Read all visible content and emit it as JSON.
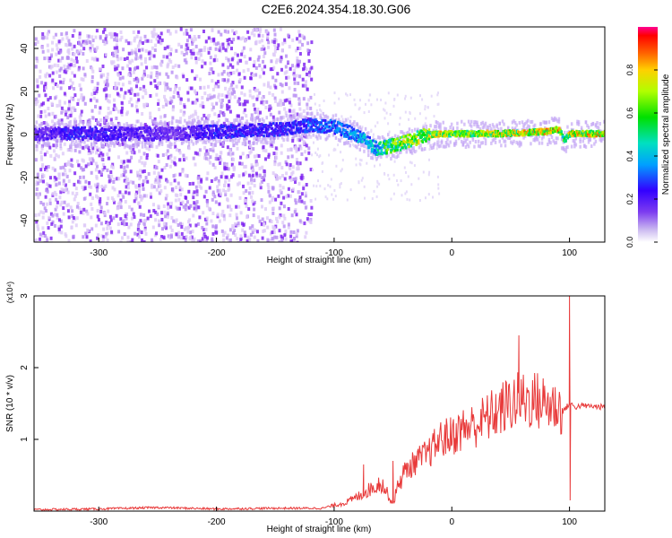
{
  "title": "C2E6.2024.354.18.30.G06",
  "chart_data": [
    {
      "type": "heatmap",
      "xlabel": "Height of straight line (km)",
      "ylabel": "Frequency (Hz)",
      "xlim": [
        -355,
        130
      ],
      "ylim": [
        -50,
        50
      ],
      "x_ticks": [
        "-300",
        "-200",
        "-100",
        "0",
        "100"
      ],
      "y_ticks": [
        "-40",
        "-20",
        "0",
        "20",
        "40"
      ],
      "colorbar": {
        "label": "Normalized spectral amplitude",
        "range": [
          0,
          1
        ],
        "ticks": [
          "0.0",
          "0.2",
          "0.4",
          "0.6",
          "0.8"
        ]
      },
      "ridge": {
        "x": [
          -355,
          -320,
          -280,
          -240,
          -200,
          -150,
          -120,
          -100,
          -80,
          -65,
          -55,
          -40,
          -25,
          -10,
          0,
          40,
          80,
          90,
          95,
          100,
          130
        ],
        "freq": [
          1,
          1,
          1,
          1,
          2,
          3,
          5,
          4,
          0,
          -6,
          -5,
          -3,
          0,
          1,
          1,
          1,
          2,
          3,
          -2,
          1,
          1
        ],
        "amplitude": [
          0.2,
          0.3,
          0.25,
          0.2,
          0.3,
          0.3,
          0.35,
          0.4,
          0.45,
          0.5,
          0.7,
          0.8,
          0.8,
          0.85,
          0.8,
          0.85,
          0.9,
          0.95,
          0.6,
          0.9,
          0.9
        ]
      }
    },
    {
      "type": "line",
      "xlabel": "Height of straight line (km)",
      "ylabel": "SNR (10 * v/v)",
      "y_scale_label": "(x10⁴)",
      "xlim": [
        -355,
        130
      ],
      "ylim": [
        0,
        3
      ],
      "x_ticks": [
        "-300",
        "-200",
        "-100",
        "0",
        "100"
      ],
      "y_ticks": [
        "1",
        "2",
        "3"
      ],
      "color": "#e83a3a",
      "series": [
        {
          "x": [
            -355,
            -300,
            -250,
            -200,
            -150,
            -110,
            -100,
            -90,
            -80,
            -70,
            -60,
            -50,
            -45,
            -40,
            -30,
            -20,
            -10,
            0,
            10,
            20,
            30,
            40,
            50,
            60,
            70,
            80,
            90,
            95,
            100,
            105,
            110,
            130
          ],
          "y": [
            0.02,
            0.03,
            0.05,
            0.03,
            0.04,
            0.04,
            0.08,
            0.12,
            0.2,
            0.3,
            0.4,
            0.1,
            0.4,
            0.55,
            0.7,
            0.8,
            1.0,
            1.05,
            1.15,
            1.2,
            1.3,
            1.4,
            1.5,
            1.55,
            1.55,
            1.5,
            1.45,
            1.4,
            1.5,
            1.45,
            1.47,
            1.45
          ]
        }
      ],
      "spikes": [
        {
          "x": 57,
          "y": 2.45
        },
        {
          "x": 100,
          "y": 3.0
        },
        {
          "x": 100.5,
          "y": 0.15
        },
        {
          "x": -50,
          "y": 0.7
        },
        {
          "x": -75,
          "y": 0.65
        }
      ]
    }
  ],
  "colors": {
    "red_line": "#e83a3a",
    "ridge_core": "#4b00e8",
    "noise": "#8a2be2"
  }
}
